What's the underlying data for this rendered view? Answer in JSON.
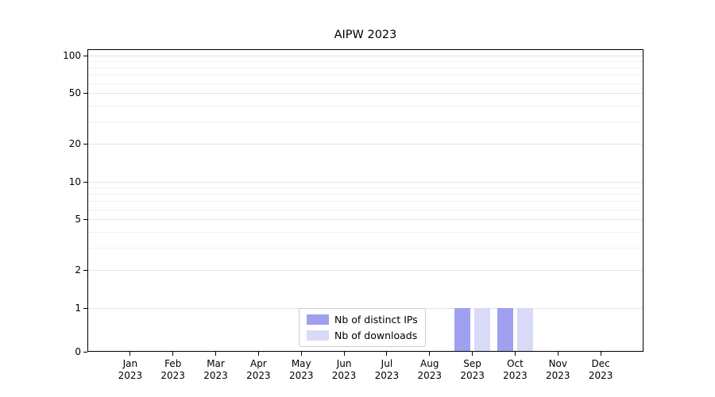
{
  "chart_data": {
    "type": "bar",
    "title": "AIPW 2023",
    "yscale": "symlog",
    "ylim": [
      0,
      112
    ],
    "grid": true,
    "legend_position": "lower-center-inside",
    "ytick_labels": [
      0,
      1,
      2,
      5,
      10,
      20,
      50,
      100
    ],
    "yticks_minor": [
      3,
      4,
      6,
      7,
      8,
      9,
      30,
      40,
      60,
      70,
      80,
      90
    ],
    "categories": [
      {
        "month": "Jan",
        "year": "2023"
      },
      {
        "month": "Feb",
        "year": "2023"
      },
      {
        "month": "Mar",
        "year": "2023"
      },
      {
        "month": "Apr",
        "year": "2023"
      },
      {
        "month": "May",
        "year": "2023"
      },
      {
        "month": "Jun",
        "year": "2023"
      },
      {
        "month": "Jul",
        "year": "2023"
      },
      {
        "month": "Aug",
        "year": "2023"
      },
      {
        "month": "Sep",
        "year": "2023"
      },
      {
        "month": "Oct",
        "year": "2023"
      },
      {
        "month": "Nov",
        "year": "2023"
      },
      {
        "month": "Dec",
        "year": "2023"
      }
    ],
    "series": [
      {
        "name": "Nb of distinct IPs",
        "color": "#a0a0f0",
        "values": [
          0,
          0,
          0,
          0,
          0,
          0,
          0,
          0,
          1,
          1,
          0,
          0
        ]
      },
      {
        "name": "Nb of downloads",
        "color": "#d9d9f8",
        "values": [
          0,
          0,
          0,
          0,
          0,
          0,
          0,
          0,
          1,
          1,
          0,
          0
        ]
      }
    ]
  }
}
